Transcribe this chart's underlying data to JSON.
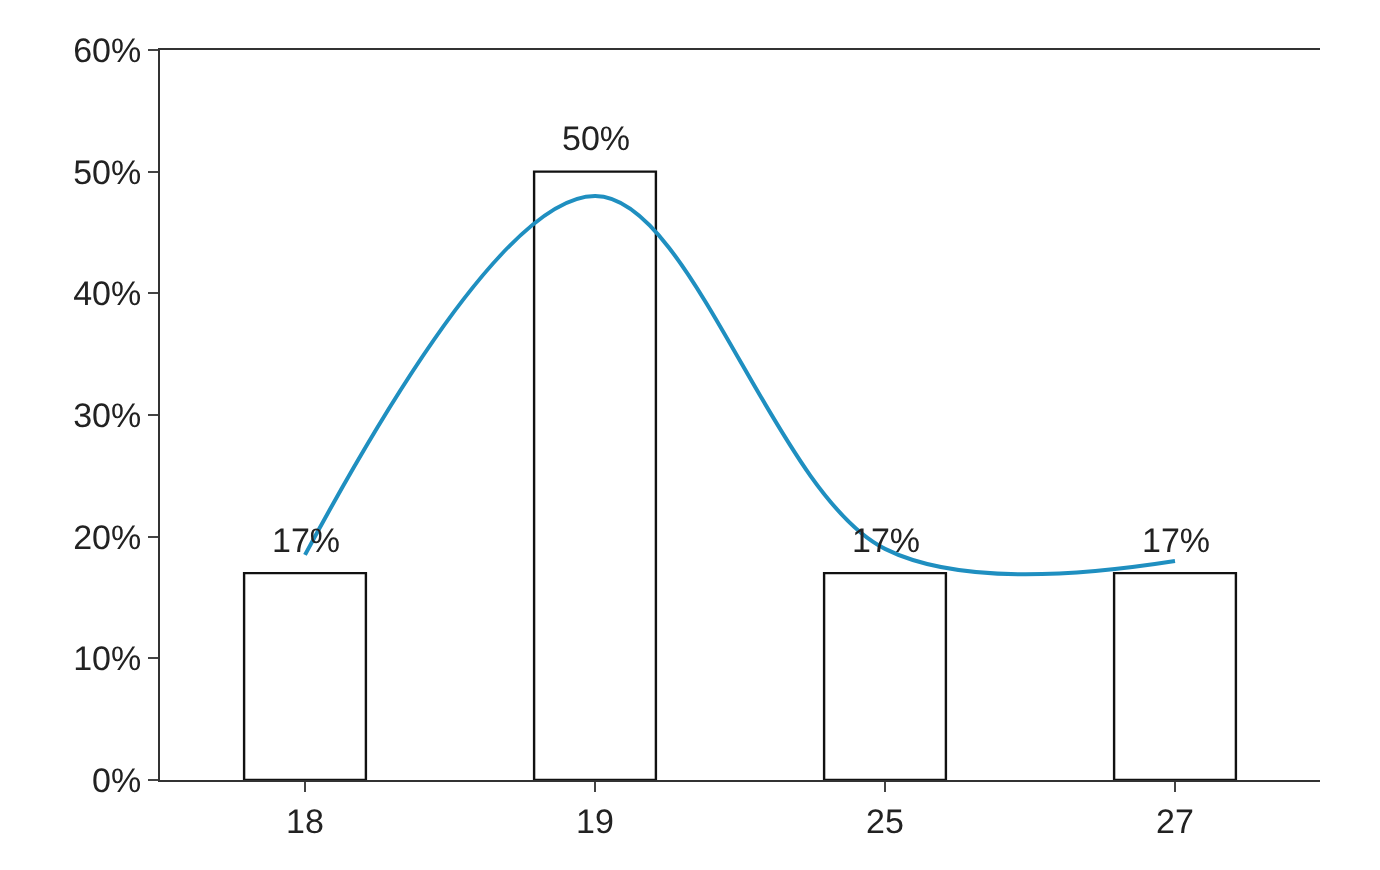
{
  "chart_data": {
    "type": "bar",
    "categories": [
      "18",
      "19",
      "25",
      "27"
    ],
    "series": [
      {
        "color": "#ffffff",
        "values": [
          17,
          50,
          17,
          17
        ],
        "value_labels": [
          "17%",
          "50%",
          "17%",
          "17%"
        ]
      },
      {
        "type": "line",
        "color": "#1f8fc0",
        "values": [
          18.5,
          48,
          19,
          18
        ],
        "line_style": "solid"
      }
    ],
    "ylim": [
      0,
      60
    ],
    "yticks": [
      {
        "value": 0,
        "label": "0%"
      },
      {
        "value": 10,
        "label": "10%"
      },
      {
        "value": 20,
        "label": "20%"
      },
      {
        "value": 30,
        "label": "30%"
      },
      {
        "value": 40,
        "label": "40%"
      },
      {
        "value": 50,
        "label": "50%"
      },
      {
        "value": 60,
        "label": "60%"
      }
    ],
    "marker": "none"
  }
}
